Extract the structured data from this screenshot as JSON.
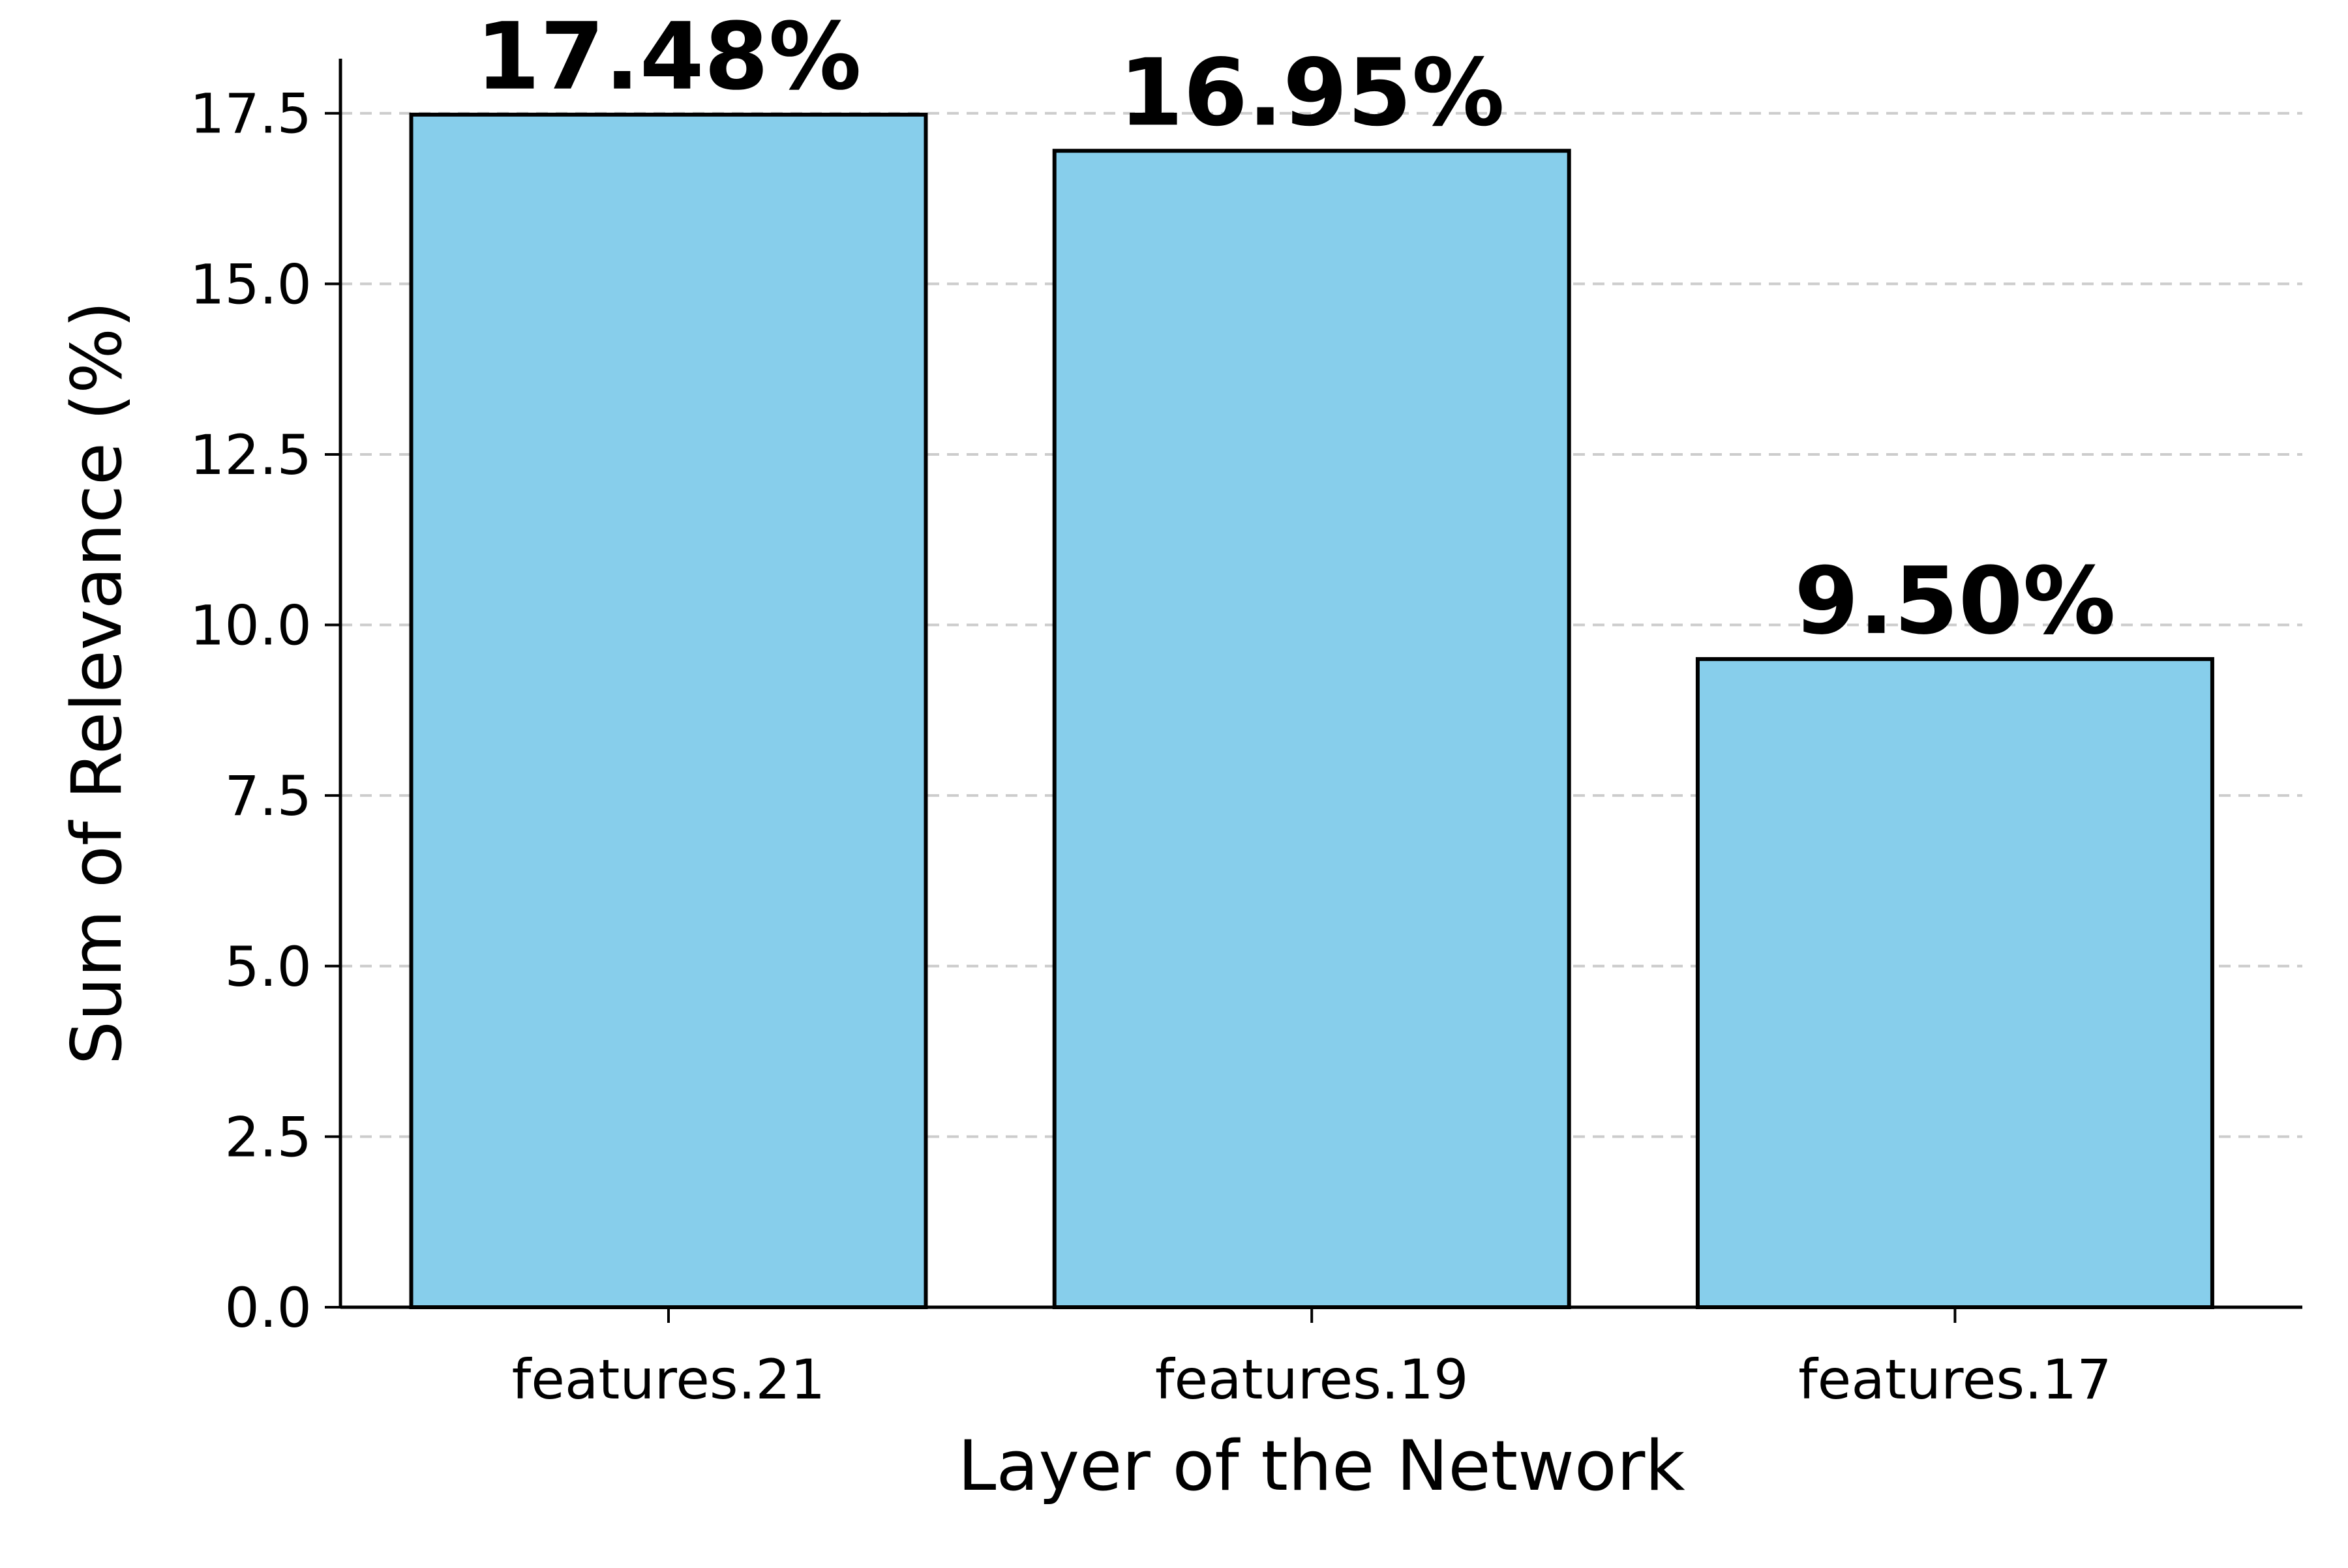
{
  "chart_data": {
    "type": "bar",
    "title": "",
    "xlabel": "Layer of the Network",
    "ylabel": "Sum of Relevance (%)",
    "categories": [
      "features.21",
      "features.19",
      "features.17"
    ],
    "values": [
      17.48,
      16.95,
      9.5
    ],
    "data_labels": [
      "17.48%",
      "16.95%",
      "9.50%"
    ],
    "ylim": [
      0,
      18.3
    ],
    "yticks": [
      0.0,
      2.5,
      5.0,
      7.5,
      10.0,
      12.5,
      15.0,
      17.5
    ],
    "ytick_labels": [
      "0.0",
      "2.5",
      "5.0",
      "7.5",
      "10.0",
      "12.5",
      "15.0",
      "17.5"
    ],
    "grid": "y-dashed",
    "legend": "none",
    "colors": {
      "bar_fill": "#87CEEB",
      "bar_edge": "#000000",
      "grid": "#cccccc",
      "axis": "#000000"
    }
  }
}
